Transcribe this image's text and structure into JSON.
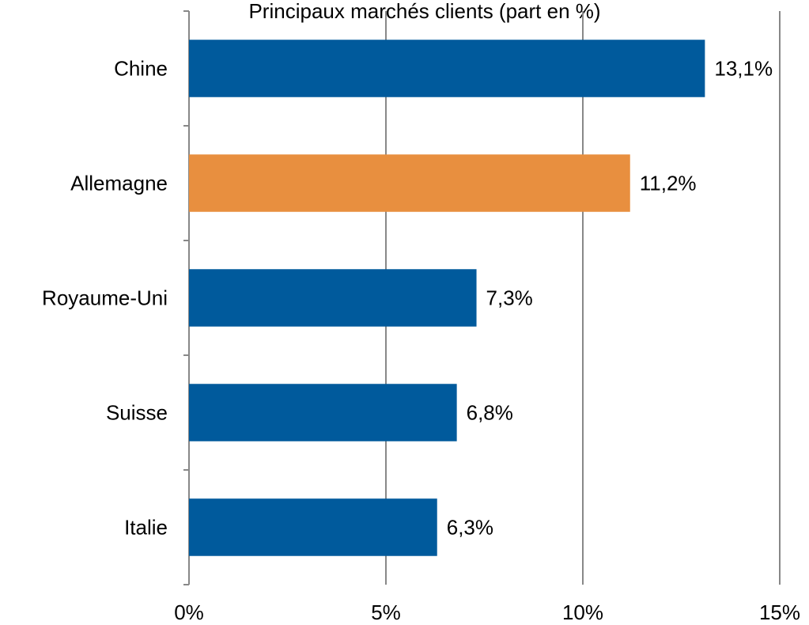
{
  "chart_data": {
    "type": "barh",
    "title": "Principaux marchés clients (part en %)",
    "categories": [
      "Chine",
      "Allemagne",
      "Royaume-Uni",
      "Suisse",
      "Italie"
    ],
    "values": [
      13.1,
      11.2,
      7.3,
      6.8,
      6.3
    ],
    "value_labels": [
      "13,1%",
      "11,2%",
      "7,3%",
      "6,8%",
      "6,3%"
    ],
    "colors": [
      "#005a9c",
      "#e88f3f",
      "#005a9c",
      "#005a9c",
      "#005a9c"
    ],
    "xlim": [
      0,
      15
    ],
    "xticks": [
      {
        "value": 0,
        "label": "0%"
      },
      {
        "value": 5,
        "label": "5%"
      },
      {
        "value": 10,
        "label": "10%"
      },
      {
        "value": 15,
        "label": "15%"
      }
    ],
    "grid": true
  }
}
